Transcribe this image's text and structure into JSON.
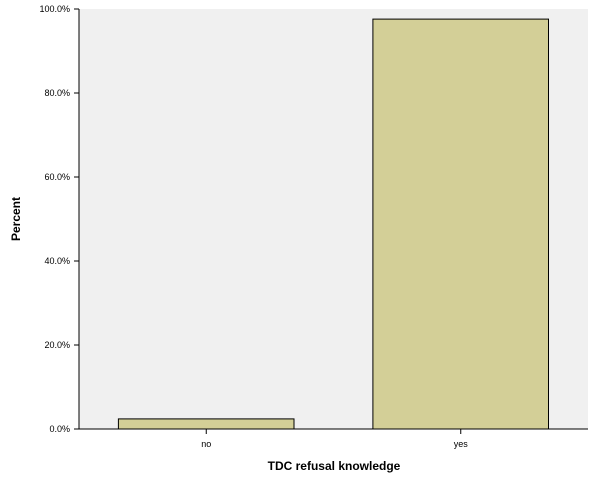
{
  "chart_data": {
    "type": "bar",
    "title": "",
    "xlabel": "TDC refusal knowledge",
    "ylabel": "Percent",
    "categories": [
      "no",
      "yes"
    ],
    "values": [
      2.4,
      97.6
    ],
    "ylim": [
      0,
      100
    ],
    "yticks": [
      0,
      20,
      40,
      60,
      80,
      100
    ],
    "ytick_labels": [
      "0.0%",
      "20.0%",
      "40.0%",
      "60.0%",
      "80.0%",
      "100.0%"
    ],
    "grid": false,
    "legend": "none",
    "colors": {
      "bar_fill": "#d3cf97",
      "bar_stroke": "#000000",
      "plot_background": "#f0f0f0"
    }
  }
}
